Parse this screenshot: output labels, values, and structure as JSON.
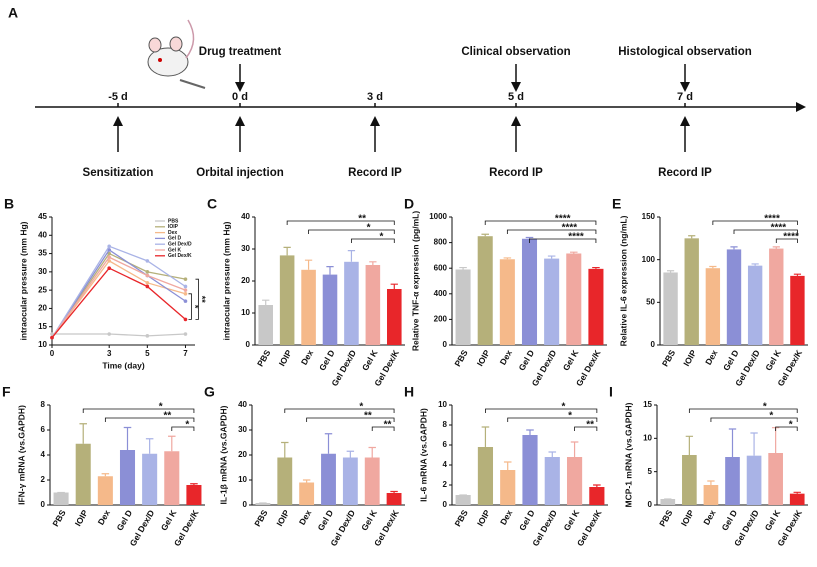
{
  "timeline": {
    "panel": "A",
    "points": [
      {
        "day": "-5 d",
        "below": "Sensitization"
      },
      {
        "day": "0 d",
        "above": "Drug treatment",
        "below": "Orbital injection"
      },
      {
        "day": "3 d",
        "below": "Record IP"
      },
      {
        "day": "5 d",
        "above": "Clinical observation",
        "below": "Record IP"
      },
      {
        "day": "7 d",
        "above": "Histological observation",
        "below": "Record IP"
      }
    ]
  },
  "chart_data": [
    {
      "type": "line",
      "panel": "B",
      "x_label": "Time (day)",
      "y_label": "intraocular pressure  (mm Hg)",
      "x": [
        0,
        3,
        5,
        7
      ],
      "xlim": [
        0,
        7.5
      ],
      "xticks": [
        0,
        3,
        5,
        7
      ],
      "ylim": [
        10,
        45
      ],
      "yticks": [
        10,
        15,
        20,
        25,
        30,
        35,
        40,
        45
      ],
      "legend": "upper right",
      "series": [
        {
          "name": "PBS",
          "color": "#c8c8c8",
          "values": [
            13,
            13,
            12.5,
            13
          ]
        },
        {
          "name": "IOIP",
          "color": "#b5b07a",
          "values": [
            12,
            35,
            30,
            28
          ]
        },
        {
          "name": "Dex",
          "color": "#f5b98a",
          "values": [
            12,
            33,
            27,
            24
          ]
        },
        {
          "name": "Gel D",
          "color": "#8b8fd6",
          "values": [
            12,
            36,
            29,
            22
          ]
        },
        {
          "name": "Gel Dex/D",
          "color": "#a9b3e6",
          "values": [
            12,
            37,
            33,
            26
          ]
        },
        {
          "name": "Gel K",
          "color": "#f0a8a0",
          "values": [
            12,
            34,
            29,
            25
          ]
        },
        {
          "name": "Gel Dex/K",
          "color": "#e8262a",
          "values": [
            12,
            31,
            26,
            17
          ]
        }
      ],
      "comparisons": [
        {
          "label": "*",
          "groups": [
            "Dex",
            "Gel Dex/K"
          ]
        },
        {
          "label": "**",
          "groups": [
            "IOIP",
            "Gel Dex/K"
          ]
        }
      ]
    },
    {
      "type": "bar",
      "panel": "C",
      "y_label": "intraocular pressure  (mm Hg)",
      "categories": [
        "PBS",
        "IOIP",
        "Dex",
        "Gel D",
        "Gel Dex/D",
        "Gel K",
        "Gel Dex/K"
      ],
      "colors": [
        "#c8c8c8",
        "#b5b07a",
        "#f5b98a",
        "#8b8fd6",
        "#a9b3e6",
        "#f0a8a0",
        "#e8262a"
      ],
      "values": [
        12.5,
        28,
        23.5,
        22,
        26,
        25,
        17.5
      ],
      "errors": [
        1.5,
        2.5,
        3,
        2.5,
        3.5,
        1,
        1.5
      ],
      "ylim": [
        0,
        40
      ],
      "yticks": [
        0,
        10,
        20,
        30,
        40
      ],
      "comparisons": [
        {
          "label": "**",
          "groups": [
            "IOIP",
            "Gel Dex/K"
          ]
        },
        {
          "label": "*",
          "groups": [
            "Dex",
            "Gel Dex/K"
          ]
        },
        {
          "label": "*",
          "groups": [
            "Gel Dex/D",
            "Gel Dex/K"
          ]
        }
      ]
    },
    {
      "type": "bar",
      "panel": "D",
      "y_label": "Relative TNF-α expression (pg/mL)",
      "categories": [
        "PBS",
        "IOIP",
        "Dex",
        "Gel D",
        "Gel Dex/D",
        "Gel K",
        "Gel Dex/K"
      ],
      "colors": [
        "#c8c8c8",
        "#b5b07a",
        "#f5b98a",
        "#8b8fd6",
        "#a9b3e6",
        "#f0a8a0",
        "#e8262a"
      ],
      "values": [
        590,
        850,
        670,
        830,
        675,
        715,
        595
      ],
      "errors": [
        15,
        15,
        10,
        10,
        20,
        10,
        10
      ],
      "ylim": [
        0,
        1000
      ],
      "yticks": [
        0,
        200,
        400,
        600,
        800,
        1000
      ],
      "comparisons": [
        {
          "label": "****",
          "groups": [
            "IOIP",
            "Gel Dex/K"
          ]
        },
        {
          "label": "****",
          "groups": [
            "Dex",
            "Gel Dex/K"
          ]
        },
        {
          "label": "****",
          "groups": [
            "Gel D",
            "Gel Dex/K"
          ]
        }
      ]
    },
    {
      "type": "bar",
      "panel": "E",
      "y_label": "Relative IL-6 expression (ng/mL)",
      "categories": [
        "PBS",
        "IOIP",
        "Dex",
        "Gel D",
        "Gel Dex/D",
        "Gel K",
        "Gel Dex/K"
      ],
      "colors": [
        "#c8c8c8",
        "#b5b07a",
        "#f5b98a",
        "#8b8fd6",
        "#a9b3e6",
        "#f0a8a0",
        "#e8262a"
      ],
      "values": [
        85,
        125,
        90,
        112,
        93,
        113,
        81
      ],
      "errors": [
        2,
        3,
        2,
        3,
        2,
        2,
        2
      ],
      "ylim": [
        0,
        150
      ],
      "yticks": [
        0,
        50,
        100,
        150
      ],
      "comparisons": [
        {
          "label": "****",
          "groups": [
            "Dex",
            "Gel Dex/K"
          ]
        },
        {
          "label": "****",
          "groups": [
            "Gel D",
            "Gel Dex/K"
          ]
        },
        {
          "label": "****",
          "groups": [
            "Gel K",
            "Gel Dex/K"
          ]
        }
      ]
    },
    {
      "type": "bar",
      "panel": "F",
      "y_label": "IFN-γ mRNA (vs.GAPDH)",
      "categories": [
        "PBS",
        "IOIP",
        "Dex",
        "Gel D",
        "Gel Dex/D",
        "Gel K",
        "Gel Dex/K"
      ],
      "colors": [
        "#c8c8c8",
        "#b5b07a",
        "#f5b98a",
        "#8b8fd6",
        "#a9b3e6",
        "#f0a8a0",
        "#e8262a"
      ],
      "values": [
        1,
        4.9,
        2.3,
        4.4,
        4.1,
        4.3,
        1.6
      ],
      "errors": [
        0,
        1.6,
        0.2,
        1.8,
        1.2,
        1.2,
        0.1
      ],
      "ylim": [
        0,
        8
      ],
      "yticks": [
        0,
        2,
        4,
        6,
        8
      ],
      "comparisons": [
        {
          "label": "*",
          "groups": [
            "IOIP",
            "Gel Dex/K"
          ]
        },
        {
          "label": "**",
          "groups": [
            "Dex",
            "Gel Dex/K"
          ]
        },
        {
          "label": "*",
          "groups": [
            "Gel K",
            "Gel Dex/K"
          ]
        }
      ]
    },
    {
      "type": "bar",
      "panel": "G",
      "y_label": "IL-1β mRNA (vs.GAPDH)",
      "categories": [
        "PBS",
        "IOIP",
        "Dex",
        "Gel D",
        "Gel Dex/D",
        "Gel K",
        "Gel Dex/K"
      ],
      "colors": [
        "#c8c8c8",
        "#b5b07a",
        "#f5b98a",
        "#8b8fd6",
        "#a9b3e6",
        "#f0a8a0",
        "#e8262a"
      ],
      "values": [
        0.8,
        19,
        9,
        20.5,
        19,
        19,
        4.8
      ],
      "errors": [
        0,
        6,
        1,
        8,
        2.5,
        4,
        0.6
      ],
      "ylim": [
        0,
        40
      ],
      "yticks": [
        0,
        10,
        20,
        30,
        40
      ],
      "comparisons": [
        {
          "label": "*",
          "groups": [
            "IOIP",
            "Gel Dex/K"
          ]
        },
        {
          "label": "**",
          "groups": [
            "Dex",
            "Gel Dex/K"
          ]
        },
        {
          "label": "**",
          "groups": [
            "Gel K",
            "Gel Dex/K"
          ]
        }
      ]
    },
    {
      "type": "bar",
      "panel": "H",
      "y_label": "IL-6 mRNA (vs.GAPDH)",
      "categories": [
        "PBS",
        "IOIP",
        "Dex",
        "Gel D",
        "Gel Dex/D",
        "Gel K",
        "Gel Dex/K"
      ],
      "colors": [
        "#c8c8c8",
        "#b5b07a",
        "#f5b98a",
        "#8b8fd6",
        "#a9b3e6",
        "#f0a8a0",
        "#e8262a"
      ],
      "values": [
        1,
        5.8,
        3.5,
        7,
        4.8,
        4.8,
        1.8
      ],
      "errors": [
        0,
        2,
        0.8,
        0.5,
        0.5,
        1.5,
        0.2
      ],
      "ylim": [
        0,
        10
      ],
      "yticks": [
        0,
        2,
        4,
        6,
        8,
        10
      ],
      "comparisons": [
        {
          "label": "*",
          "groups": [
            "IOIP",
            "Gel Dex/K"
          ]
        },
        {
          "label": "*",
          "groups": [
            "Dex",
            "Gel Dex/K"
          ]
        },
        {
          "label": "**",
          "groups": [
            "Gel K",
            "Gel Dex/K"
          ]
        }
      ]
    },
    {
      "type": "bar",
      "panel": "I",
      "y_label": "MCP-1 mRNA (vs.GAPDH)",
      "categories": [
        "PBS",
        "IOIP",
        "Dex",
        "Gel D",
        "Gel Dex/D",
        "Gel K",
        "Gel Dex/K"
      ],
      "colors": [
        "#c8c8c8",
        "#b5b07a",
        "#f5b98a",
        "#8b8fd6",
        "#a9b3e6",
        "#f0a8a0",
        "#e8262a"
      ],
      "values": [
        0.9,
        7.5,
        3,
        7.2,
        7.4,
        7.8,
        1.7
      ],
      "errors": [
        0,
        2.8,
        0.6,
        4.2,
        3.4,
        3.8,
        0.2
      ],
      "ylim": [
        0,
        15
      ],
      "yticks": [
        0,
        5,
        10,
        15
      ],
      "comparisons": [
        {
          "label": "*",
          "groups": [
            "IOIP",
            "Gel Dex/K"
          ]
        },
        {
          "label": "*",
          "groups": [
            "Dex",
            "Gel Dex/K"
          ]
        },
        {
          "label": "*",
          "groups": [
            "Gel K",
            "Gel Dex/K"
          ]
        }
      ]
    }
  ]
}
